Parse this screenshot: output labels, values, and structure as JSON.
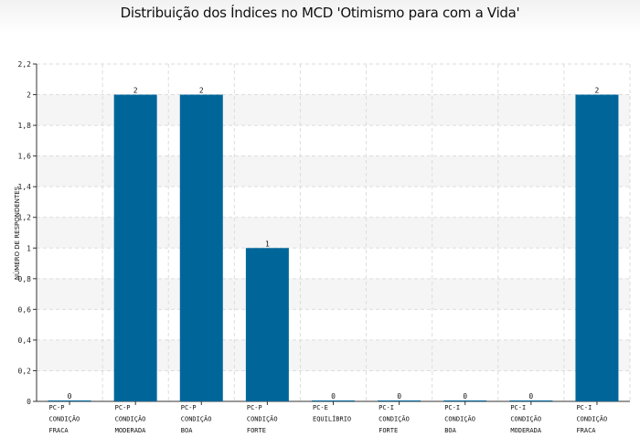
{
  "title": "Distribuição dos Índices no MCD 'Otimismo para com a Vida'",
  "colors": {
    "bar": "#006699",
    "grid": "#dddddd",
    "band": "#f5f5f5",
    "axis": "#333333"
  },
  "chart_data": {
    "type": "bar",
    "title": "Distribuição dos Índices no MCD 'Otimismo para com a Vida'",
    "xlabel": "",
    "ylabel": "NÚMERO DE RESPONDENTES",
    "ylim": [
      0,
      2.2
    ],
    "yticks": [
      "0",
      "0,2",
      "0,4",
      "0,6",
      "0,8",
      "1",
      "1,2",
      "1,4",
      "1,6",
      "1,8",
      "2",
      "2,2"
    ],
    "grid": true,
    "categories": [
      [
        "PC-P",
        "CONDIÇÃO",
        "FRACA"
      ],
      [
        "PC-P",
        "CONDIÇÃO",
        "MODERADA"
      ],
      [
        "PC-P",
        "CONDIÇÃO",
        "BOA"
      ],
      [
        "PC-P",
        "CONDIÇÃO",
        "FORTE"
      ],
      [
        "PC-E",
        "EQUILÍBRIO"
      ],
      [
        "PC-I",
        "CONDIÇÃO",
        "FORTE"
      ],
      [
        "PC-I",
        "CONDIÇÃO",
        "BOA"
      ],
      [
        "PC-I",
        "CONDIÇÃO",
        "MODERADA"
      ],
      [
        "PC-I",
        "CONDIÇÃO",
        "FRACA"
      ]
    ],
    "values": [
      0,
      2,
      2,
      1,
      0,
      0,
      0,
      0,
      2
    ],
    "data_labels": [
      "0",
      "2",
      "2",
      "1",
      "0",
      "0",
      "0",
      "0",
      "2"
    ]
  }
}
